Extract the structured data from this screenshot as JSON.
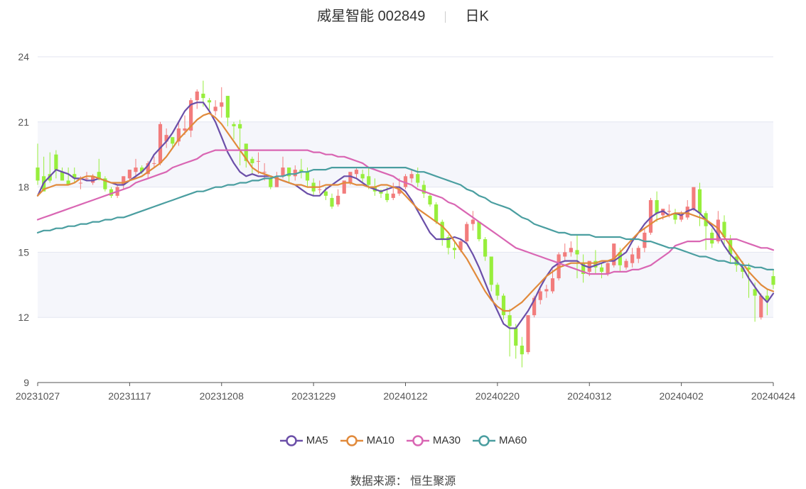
{
  "header": {
    "title": "威星智能 002849",
    "period": "日K"
  },
  "source": {
    "label": "数据来源：",
    "value": "恒生聚源"
  },
  "chart_data": {
    "type": "candlestick",
    "ylim": [
      9,
      24
    ],
    "yticks": [
      9,
      12,
      15,
      18,
      21,
      24
    ],
    "x_tick_labels": [
      "20231027",
      "20231117",
      "20231208",
      "20231229",
      "20240122",
      "20240220",
      "20240312",
      "20240402",
      "20240424"
    ],
    "x_tick_index": [
      0,
      15,
      30,
      45,
      60,
      75,
      90,
      105,
      120
    ],
    "n_points": 121,
    "up_color": "#f27c7c",
    "down_color": "#97ee3c",
    "candles_ohlc": [
      [
        18.9,
        20.0,
        18.3,
        18.1
      ],
      [
        18.5,
        19.4,
        17.8,
        18.3
      ],
      [
        18.6,
        19.6,
        18.3,
        18.2
      ],
      [
        19.5,
        19.7,
        18.8,
        18.4
      ],
      [
        18.7,
        18.9,
        18.3,
        18.3
      ],
      [
        18.3,
        18.9,
        18.1,
        18.1
      ],
      [
        18.6,
        18.9,
        18.4,
        18.2
      ],
      [
        18.2,
        18.5,
        18.2,
        17.9
      ],
      [
        18.4,
        18.7,
        18.4,
        18.3
      ],
      [
        18.2,
        18.6,
        18.5,
        18.1
      ],
      [
        18.7,
        19.3,
        18.4,
        18.3
      ],
      [
        18.4,
        18.5,
        17.9,
        17.8
      ],
      [
        17.9,
        18.0,
        17.6,
        17.5
      ],
      [
        17.6,
        18.1,
        18.0,
        17.5
      ],
      [
        18.1,
        18.5,
        18.5,
        17.9
      ],
      [
        18.4,
        18.8,
        18.8,
        18.3
      ],
      [
        18.7,
        19.3,
        18.9,
        18.4
      ],
      [
        18.9,
        19.0,
        18.7,
        18.6
      ],
      [
        18.6,
        19.2,
        19.1,
        18.4
      ],
      [
        19.1,
        19.4,
        19.1,
        18.9
      ],
      [
        19.1,
        21.0,
        20.9,
        19.0
      ],
      [
        20.1,
        20.7,
        20.4,
        19.8
      ],
      [
        20.3,
        20.3,
        20.0,
        19.8
      ],
      [
        20.1,
        21.0,
        20.7,
        19.9
      ],
      [
        20.6,
        21.3,
        20.7,
        20.4
      ],
      [
        20.6,
        22.1,
        22.0,
        20.3
      ],
      [
        22.0,
        22.5,
        22.4,
        21.6
      ],
      [
        22.3,
        22.9,
        22.1,
        21.7
      ],
      [
        22.0,
        22.1,
        21.9,
        21.4
      ],
      [
        21.5,
        22.0,
        21.7,
        21.3
      ],
      [
        21.7,
        22.6,
        21.9,
        21.2
      ],
      [
        22.2,
        22.2,
        21.2,
        20.8
      ],
      [
        20.9,
        21.0,
        20.8,
        20.2
      ],
      [
        20.9,
        21.1,
        20.7,
        19.0
      ],
      [
        20.0,
        20.0,
        19.2,
        18.9
      ],
      [
        19.3,
        19.4,
        19.1,
        18.6
      ],
      [
        19.2,
        19.6,
        19.2,
        18.6
      ],
      [
        18.7,
        19.1,
        18.7,
        18.3
      ],
      [
        18.4,
        18.5,
        18.0,
        17.9
      ],
      [
        18.0,
        18.7,
        18.5,
        18.0
      ],
      [
        18.5,
        19.4,
        18.9,
        18.4
      ],
      [
        18.9,
        18.9,
        18.5,
        18.2
      ],
      [
        18.5,
        19.0,
        18.8,
        18.3
      ],
      [
        18.8,
        19.3,
        18.7,
        18.4
      ],
      [
        18.7,
        18.9,
        18.3,
        18.0
      ],
      [
        18.2,
        18.4,
        17.8,
        17.6
      ],
      [
        17.9,
        18.3,
        17.9,
        17.7
      ],
      [
        17.8,
        18.0,
        17.6,
        17.4
      ],
      [
        17.5,
        17.7,
        17.1,
        17.0
      ],
      [
        17.2,
        17.9,
        17.6,
        17.1
      ],
      [
        17.7,
        18.2,
        18.3,
        17.7
      ],
      [
        18.2,
        18.6,
        18.7,
        18.1
      ],
      [
        18.6,
        18.9,
        18.8,
        18.4
      ],
      [
        18.6,
        18.8,
        18.4,
        18.2
      ],
      [
        18.5,
        18.9,
        18.1,
        17.9
      ],
      [
        18.0,
        18.4,
        17.8,
        17.6
      ],
      [
        17.8,
        17.9,
        17.7,
        17.5
      ],
      [
        17.7,
        18.0,
        17.4,
        17.3
      ],
      [
        17.5,
        18.2,
        17.7,
        17.4
      ],
      [
        17.7,
        18.4,
        17.9,
        17.6
      ],
      [
        18.0,
        18.6,
        18.5,
        17.9
      ],
      [
        18.4,
        18.8,
        18.6,
        18.2
      ],
      [
        18.6,
        18.9,
        18.2,
        18.0
      ],
      [
        18.1,
        18.3,
        17.7,
        17.5
      ],
      [
        17.6,
        17.7,
        17.2,
        17.1
      ],
      [
        17.2,
        17.3,
        16.4,
        16.3
      ],
      [
        16.4,
        16.5,
        15.6,
        15.3
      ],
      [
        15.7,
        15.8,
        15.2,
        14.9
      ],
      [
        15.2,
        15.5,
        15.1,
        14.7
      ],
      [
        15.1,
        15.6,
        15.5,
        15.0
      ],
      [
        15.5,
        16.4,
        16.3,
        15.4
      ],
      [
        16.3,
        16.9,
        16.5,
        16.0
      ],
      [
        16.4,
        16.4,
        15.6,
        15.5
      ],
      [
        15.6,
        15.7,
        14.8,
        14.6
      ],
      [
        14.8,
        14.8,
        13.5,
        13.2
      ],
      [
        13.5,
        13.6,
        13.0,
        12.8
      ],
      [
        13.0,
        13.1,
        12.1,
        11.9
      ],
      [
        12.1,
        12.4,
        11.6,
        10.2
      ],
      [
        11.5,
        11.7,
        10.7,
        10.1
      ],
      [
        10.7,
        11.1,
        10.3,
        9.7
      ],
      [
        10.4,
        12.1,
        12.1,
        10.3
      ],
      [
        12.1,
        13.0,
        12.9,
        12.0
      ],
      [
        12.8,
        13.3,
        13.2,
        12.6
      ],
      [
        13.2,
        13.5,
        13.3,
        12.9
      ],
      [
        13.2,
        14.2,
        13.8,
        13.1
      ],
      [
        13.8,
        15.0,
        14.9,
        13.7
      ],
      [
        14.8,
        15.4,
        15.0,
        14.6
      ],
      [
        15.0,
        15.5,
        15.2,
        14.8
      ],
      [
        15.1,
        15.8,
        14.9,
        13.8
      ],
      [
        14.5,
        14.9,
        14.0,
        13.6
      ],
      [
        14.1,
        14.5,
        14.6,
        13.9
      ],
      [
        14.6,
        15.1,
        14.3,
        14.0
      ],
      [
        14.3,
        14.5,
        14.1,
        13.8
      ],
      [
        14.0,
        14.6,
        14.5,
        13.9
      ],
      [
        14.4,
        15.4,
        15.4,
        14.3
      ],
      [
        15.0,
        15.2,
        14.4,
        14.1
      ],
      [
        14.3,
        14.7,
        14.6,
        14.2
      ],
      [
        14.5,
        15.2,
        14.9,
        14.3
      ],
      [
        14.7,
        15.3,
        15.2,
        14.5
      ],
      [
        15.2,
        16.1,
        15.9,
        15.0
      ],
      [
        15.9,
        17.5,
        17.4,
        15.8
      ],
      [
        17.4,
        17.8,
        16.8,
        16.4
      ],
      [
        16.7,
        17.0,
        17.0,
        16.5
      ],
      [
        16.9,
        17.2,
        16.9,
        16.6
      ],
      [
        16.8,
        17.0,
        16.5,
        16.3
      ],
      [
        16.5,
        16.9,
        16.7,
        16.4
      ],
      [
        16.6,
        17.4,
        17.1,
        16.5
      ],
      [
        17.0,
        18.0,
        18.0,
        16.9
      ],
      [
        17.9,
        18.2,
        16.8,
        16.2
      ],
      [
        16.8,
        16.9,
        16.2,
        15.1
      ],
      [
        15.9,
        16.1,
        15.4,
        15.2
      ],
      [
        15.5,
        16.9,
        16.5,
        15.4
      ],
      [
        16.4,
        16.7,
        15.7,
        15.3
      ],
      [
        15.6,
        15.8,
        14.9,
        14.5
      ],
      [
        14.8,
        14.9,
        14.4,
        14.1
      ],
      [
        14.3,
        14.6,
        14.1,
        13.8
      ],
      [
        14.3,
        14.5,
        14.2,
        12.9
      ],
      [
        13.3,
        13.6,
        13.0,
        11.8
      ],
      [
        12.0,
        13.1,
        13.0,
        11.9
      ],
      [
        13.0,
        13.3,
        12.8,
        12.1
      ],
      [
        13.9,
        14.2,
        13.5,
        13.3
      ]
    ],
    "series": [
      {
        "name": "MA5",
        "color": "#6b4fa8",
        "values": [
          17.6,
          18.2,
          18.5,
          18.8,
          18.7,
          18.6,
          18.4,
          18.4,
          18.3,
          18.3,
          18.4,
          18.3,
          18.2,
          18.1,
          18.1,
          18.3,
          18.5,
          18.7,
          19.0,
          19.5,
          19.8,
          20.1,
          20.5,
          21.0,
          21.5,
          21.8,
          21.9,
          21.9,
          21.5,
          21.0,
          20.3,
          19.6,
          19.1,
          18.7,
          18.5,
          18.6,
          18.5,
          18.5,
          18.5,
          18.4,
          18.3,
          18.2,
          18.1,
          17.9,
          17.7,
          17.6,
          17.6,
          17.9,
          18.1,
          18.3,
          18.5,
          18.5,
          18.4,
          18.2,
          18.0,
          17.9,
          17.8,
          17.9,
          18.0,
          18.0,
          17.8,
          17.4,
          16.9,
          16.4,
          15.9,
          15.6,
          15.6,
          15.6,
          15.7,
          15.6,
          15.4,
          14.9,
          14.3,
          13.6,
          12.9,
          12.3,
          11.7,
          11.5,
          11.5,
          11.9,
          12.3,
          12.8,
          13.4,
          13.9,
          14.3,
          14.5,
          14.6,
          14.6,
          14.6,
          14.4,
          14.3,
          14.4,
          14.5,
          14.6,
          14.6,
          14.8,
          15.0,
          15.5,
          15.9,
          16.3,
          16.6,
          16.8,
          16.9,
          16.7,
          16.8,
          16.7,
          16.9,
          17.0,
          16.8,
          16.5,
          16.2,
          15.8,
          15.3,
          14.9,
          14.6,
          14.3,
          13.8,
          13.4,
          13.0,
          12.7,
          13.1
        ]
      },
      {
        "name": "MA10",
        "color": "#e18a3b",
        "values": [
          17.6,
          17.9,
          18.0,
          18.1,
          18.1,
          18.1,
          18.2,
          18.4,
          18.5,
          18.5,
          18.4,
          18.3,
          18.2,
          18.2,
          18.2,
          18.3,
          18.4,
          18.5,
          18.7,
          18.9,
          19.1,
          19.4,
          19.8,
          20.2,
          20.5,
          20.8,
          21.1,
          21.3,
          21.4,
          21.2,
          20.9,
          20.5,
          20.1,
          19.7,
          19.3,
          18.9,
          18.7,
          18.6,
          18.5,
          18.4,
          18.3,
          18.2,
          18.1,
          18.1,
          18.0,
          18.0,
          18.0,
          18.1,
          18.1,
          18.1,
          18.2,
          18.2,
          18.1,
          18.1,
          18.0,
          18.0,
          18.1,
          18.1,
          18.0,
          17.9,
          17.6,
          17.3,
          17.0,
          16.8,
          16.6,
          16.4,
          16.2,
          15.9,
          15.5,
          15.1,
          14.7,
          14.2,
          13.7,
          13.2,
          12.8,
          12.5,
          12.3,
          12.3,
          12.5,
          12.7,
          13.0,
          13.3,
          13.6,
          13.9,
          14.1,
          14.3,
          14.4,
          14.5,
          14.5,
          14.5,
          14.5,
          14.5,
          14.6,
          14.6,
          14.7,
          15.0,
          15.3,
          15.6,
          15.9,
          16.1,
          16.3,
          16.5,
          16.6,
          16.7,
          16.8,
          16.8,
          16.8,
          16.7,
          16.6,
          16.5,
          16.3,
          16.1,
          15.7,
          15.3,
          14.9,
          14.5,
          14.1,
          13.8,
          13.5,
          13.3,
          13.2
        ]
      },
      {
        "name": "MA30",
        "color": "#d966b3",
        "values": [
          16.5,
          16.6,
          16.7,
          16.8,
          16.9,
          17.0,
          17.1,
          17.2,
          17.3,
          17.4,
          17.5,
          17.6,
          17.7,
          17.8,
          17.9,
          18.0,
          18.2,
          18.3,
          18.4,
          18.5,
          18.6,
          18.7,
          18.9,
          19.0,
          19.1,
          19.2,
          19.3,
          19.5,
          19.6,
          19.7,
          19.7,
          19.7,
          19.7,
          19.7,
          19.7,
          19.7,
          19.7,
          19.7,
          19.7,
          19.7,
          19.7,
          19.7,
          19.7,
          19.7,
          19.7,
          19.6,
          19.6,
          19.5,
          19.5,
          19.4,
          19.4,
          19.3,
          19.2,
          19.1,
          18.9,
          18.8,
          18.7,
          18.6,
          18.5,
          18.3,
          18.2,
          18.1,
          17.9,
          17.8,
          17.7,
          17.6,
          17.5,
          17.3,
          17.2,
          17.0,
          16.8,
          16.6,
          16.4,
          16.2,
          16.0,
          15.8,
          15.6,
          15.4,
          15.2,
          15.1,
          15.0,
          14.9,
          14.8,
          14.7,
          14.6,
          14.5,
          14.4,
          14.3,
          14.2,
          14.1,
          14.0,
          14.0,
          14.0,
          14.0,
          14.1,
          14.1,
          14.1,
          14.2,
          14.2,
          14.3,
          14.4,
          14.6,
          14.8,
          15.0,
          15.3,
          15.4,
          15.5,
          15.5,
          15.5,
          15.6,
          15.6,
          15.6,
          15.6,
          15.6,
          15.6,
          15.5,
          15.4,
          15.3,
          15.2,
          15.2,
          15.1
        ]
      },
      {
        "name": "MA60",
        "color": "#4a9ea0",
        "values": [
          15.9,
          16.0,
          16.0,
          16.1,
          16.1,
          16.2,
          16.2,
          16.3,
          16.3,
          16.4,
          16.4,
          16.5,
          16.5,
          16.6,
          16.6,
          16.7,
          16.8,
          16.9,
          17.0,
          17.1,
          17.2,
          17.3,
          17.4,
          17.5,
          17.6,
          17.7,
          17.8,
          17.8,
          17.9,
          18.0,
          18.0,
          18.1,
          18.1,
          18.2,
          18.2,
          18.3,
          18.3,
          18.4,
          18.4,
          18.5,
          18.5,
          18.6,
          18.6,
          18.7,
          18.7,
          18.8,
          18.8,
          18.8,
          18.9,
          18.9,
          18.9,
          18.9,
          18.9,
          18.9,
          18.9,
          18.9,
          18.9,
          18.9,
          18.9,
          18.9,
          18.9,
          18.8,
          18.7,
          18.7,
          18.6,
          18.5,
          18.4,
          18.3,
          18.2,
          18.1,
          17.9,
          17.8,
          17.6,
          17.5,
          17.3,
          17.2,
          17.1,
          17.0,
          16.8,
          16.6,
          16.5,
          16.3,
          16.2,
          16.1,
          16.0,
          15.9,
          15.9,
          15.8,
          15.8,
          15.8,
          15.8,
          15.7,
          15.7,
          15.7,
          15.7,
          15.7,
          15.6,
          15.6,
          15.6,
          15.5,
          15.5,
          15.4,
          15.3,
          15.2,
          15.2,
          15.1,
          15.0,
          14.9,
          14.8,
          14.8,
          14.7,
          14.6,
          14.6,
          14.5,
          14.5,
          14.4,
          14.4,
          14.3,
          14.3,
          14.2,
          14.2
        ]
      }
    ],
    "legend": [
      "MA5",
      "MA10",
      "MA30",
      "MA60"
    ],
    "legend_position": "bottom-center",
    "grid": true
  }
}
